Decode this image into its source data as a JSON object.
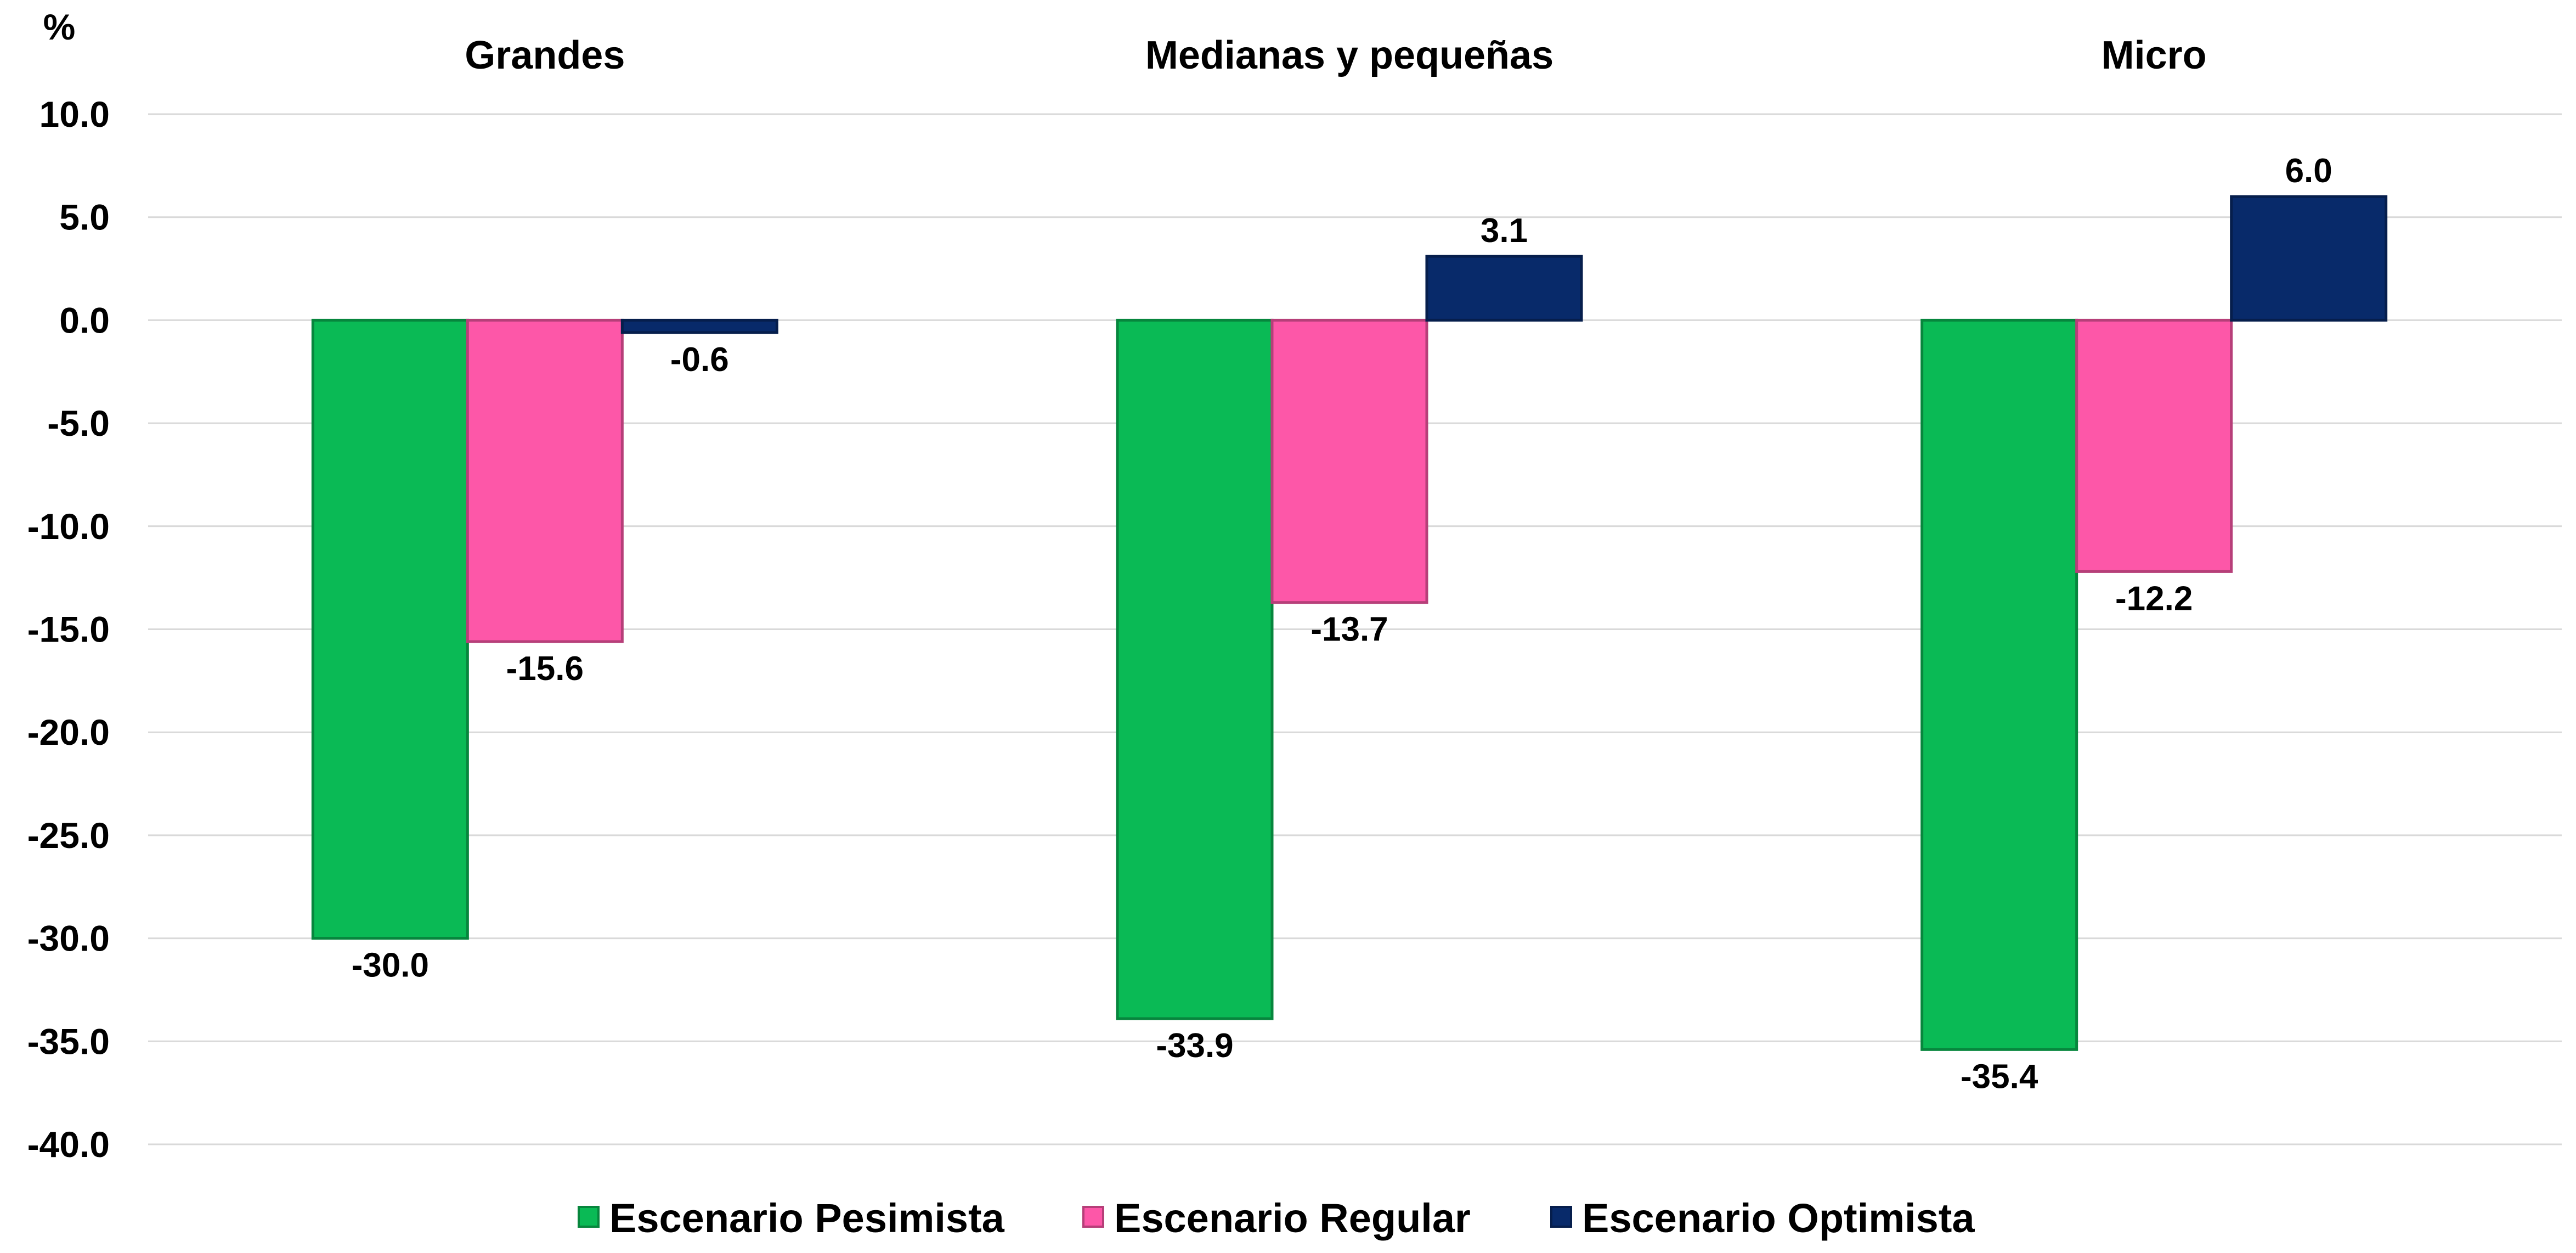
{
  "chart_data": {
    "type": "bar",
    "y_unit": "%",
    "ylim": [
      -40,
      10
    ],
    "ytick_step": 5,
    "grid": true,
    "legend_position": "bottom",
    "categories": [
      "Grandes",
      "Medianas y pequeñas",
      "Micro"
    ],
    "series": [
      {
        "name": "Escenario Pesimista",
        "color": "#0aba55",
        "values": [
          -30.0,
          -33.9,
          -35.4
        ]
      },
      {
        "name": "Escenario Regular",
        "color": "#fd57a8",
        "values": [
          -15.6,
          -13.7,
          -12.2
        ]
      },
      {
        "name": "Escenario Optimista",
        "color": "#082a6a",
        "values": [
          -0.6,
          3.1,
          6.0
        ]
      }
    ]
  }
}
